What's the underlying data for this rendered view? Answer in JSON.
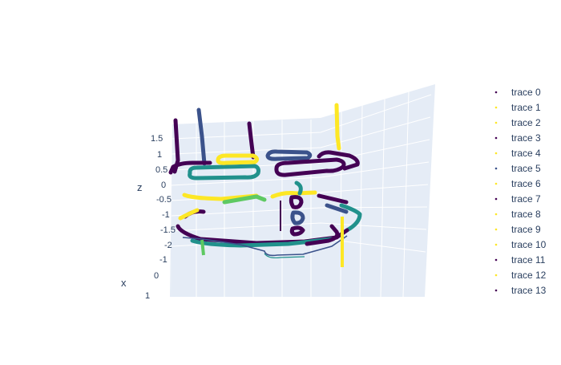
{
  "chart_data": {
    "type": "scatter3d-lines",
    "colorscale": [
      "#440154",
      "#3b528b",
      "#21918c",
      "#5ec962",
      "#fde725"
    ],
    "axes": {
      "x": {
        "title": "x",
        "tick_labels": [
          "-1",
          "0",
          "1"
        ]
      },
      "z": {
        "title": "z",
        "tick_labels": [
          "1.5",
          "1",
          "0.5",
          "0",
          "-0.5",
          "-1",
          "-1.5",
          "-2"
        ]
      }
    },
    "background": {
      "scene_wall": "#e5ecf6",
      "grid": "#ffffff"
    },
    "legend": {
      "placement": "right",
      "entries": [
        {
          "name": "trace 0",
          "color": "#440154"
        },
        {
          "name": "trace 1",
          "color": "#fde725"
        },
        {
          "name": "trace 2",
          "color": "#fde725"
        },
        {
          "name": "trace 3",
          "color": "#440154"
        },
        {
          "name": "trace 4",
          "color": "#fde725"
        },
        {
          "name": "trace 5",
          "color": "#3b528b"
        },
        {
          "name": "trace 6",
          "color": "#fde725"
        },
        {
          "name": "trace 7",
          "color": "#440154"
        },
        {
          "name": "trace 8",
          "color": "#fde725"
        },
        {
          "name": "trace 9",
          "color": "#fde725"
        },
        {
          "name": "trace 10",
          "color": "#fde725"
        },
        {
          "name": "trace 11",
          "color": "#440154"
        },
        {
          "name": "trace 12",
          "color": "#fde725"
        },
        {
          "name": "trace 13",
          "color": "#440154"
        }
      ]
    }
  }
}
